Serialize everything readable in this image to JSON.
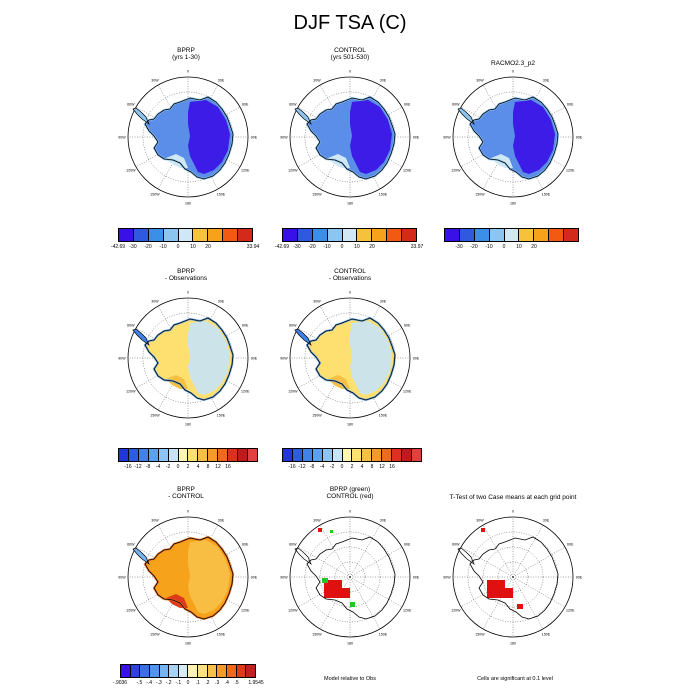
{
  "title": "DJF TSA (C)",
  "lon_labels": [
    "0",
    "30E",
    "60E",
    "90E",
    "120E",
    "150E",
    "180",
    "150W",
    "120W",
    "90W",
    "60W",
    "30W"
  ],
  "panels": [
    {
      "id": "p1",
      "line1": "BPRP",
      "line2": "(yrs 1-30)",
      "scheme": "abs"
    },
    {
      "id": "p2",
      "line1": "CONTROL",
      "line2": "(yrs 501-530)",
      "scheme": "abs"
    },
    {
      "id": "p3",
      "line1": "RACMO2.3_p2",
      "line2": "",
      "scheme": "abs"
    },
    {
      "id": "p4",
      "line1": "BPRP",
      "line2": "- Observations",
      "scheme": "bias"
    },
    {
      "id": "p5",
      "line1": "CONTROL",
      "line2": "- Observations",
      "scheme": "bias"
    },
    {
      "id": "p6",
      "line1": "BPRP",
      "line2": "- CONTROL",
      "scheme": "diff"
    },
    {
      "id": "p7",
      "line1": "BPRP (green)",
      "line2": "CONTROL (red)",
      "scheme": "sig"
    },
    {
      "id": "p8",
      "line1": "T-Test of two Case means at each grid point",
      "line2": "",
      "scheme": "sig2"
    }
  ],
  "colorbars": [
    {
      "id": "cb1",
      "colors": [
        "#3a10e8",
        "#2f5ae0",
        "#3b8fe8",
        "#8cc6f0",
        "#cfe8f4",
        "#f6c23c",
        "#f6a21a",
        "#f25a12",
        "#d42a1c"
      ],
      "labels": [
        "-42.69",
        "-30",
        "-20",
        "-10",
        "0",
        "10",
        "20",
        "33.94"
      ],
      "label_pos": [
        0,
        1,
        2,
        3,
        4,
        5,
        6,
        9
      ]
    },
    {
      "id": "cb2",
      "colors": [
        "#3a10e8",
        "#2f5ae0",
        "#3b8fe8",
        "#8cc6f0",
        "#cfe8f4",
        "#f6c23c",
        "#f6a21a",
        "#f25a12",
        "#d42a1c"
      ],
      "labels": [
        "-42.69",
        "-30",
        "-20",
        "-10",
        "0",
        "10",
        "20",
        "33.97"
      ],
      "label_pos": [
        0,
        1,
        2,
        3,
        4,
        5,
        6,
        9
      ]
    },
    {
      "id": "cb3",
      "colors": [
        "#3a10e8",
        "#2f5ae0",
        "#3b8fe8",
        "#8cc6f0",
        "#cfe8f4",
        "#f6c23c",
        "#f6a21a",
        "#f25a12",
        "#d42a1c"
      ],
      "labels": [
        "-30",
        "-20",
        "-10",
        "0",
        "10",
        "20"
      ],
      "label_pos": [
        1,
        2,
        3,
        4,
        5,
        6
      ]
    },
    {
      "id": "cb4",
      "colors": [
        "#2036d8",
        "#2c5ce0",
        "#3f82ea",
        "#5aa2f0",
        "#8cc4f4",
        "#c6e4f6",
        "#fff6b0",
        "#fde070",
        "#f8c040",
        "#f59a28",
        "#ef6a1c",
        "#dd3020",
        "#c21a1a",
        "#e04040"
      ],
      "labels": [
        "-16",
        "-12",
        "-8",
        "-4",
        "-2",
        "0",
        "2",
        "4",
        "8",
        "12",
        "16"
      ],
      "label_pos": [
        1,
        2,
        3,
        4,
        5,
        6,
        7,
        8,
        9,
        10,
        11
      ]
    },
    {
      "id": "cb5",
      "colors": [
        "#2036d8",
        "#2c5ce0",
        "#3f82ea",
        "#5aa2f0",
        "#8cc4f4",
        "#c6e4f6",
        "#fff6b0",
        "#fde070",
        "#f8c040",
        "#f59a28",
        "#ef6a1c",
        "#dd3020",
        "#c21a1a",
        "#e04040"
      ],
      "labels": [
        "-16",
        "-12",
        "-8",
        "-4",
        "-2",
        "0",
        "2",
        "4",
        "8",
        "12",
        "16"
      ],
      "label_pos": [
        1,
        2,
        3,
        4,
        5,
        6,
        7,
        8,
        9,
        10,
        11
      ]
    },
    {
      "id": "cb6",
      "colors": [
        "#3a10e8",
        "#2f42e0",
        "#3b6ee8",
        "#4f94ee",
        "#76b4f2",
        "#a8d2f4",
        "#d6ecf6",
        "#fff4b4",
        "#fde080",
        "#f8c048",
        "#f59a2a",
        "#ee6a1a",
        "#dd3a1c",
        "#c41e1e"
      ],
      "labels": [
        "-.9036",
        "-.5",
        "-.4",
        "-.3",
        "-.2",
        "-.1",
        "0",
        ".1",
        ".2",
        ".3",
        ".4",
        ".5",
        "1.9545"
      ],
      "label_pos": [
        0,
        2,
        3,
        4,
        5,
        6,
        7,
        8,
        9,
        10,
        11,
        12,
        14
      ]
    }
  ],
  "notes": {
    "model_relative": "Model relative to Obs",
    "significance": "Cells are significant at 0.1 level"
  }
}
